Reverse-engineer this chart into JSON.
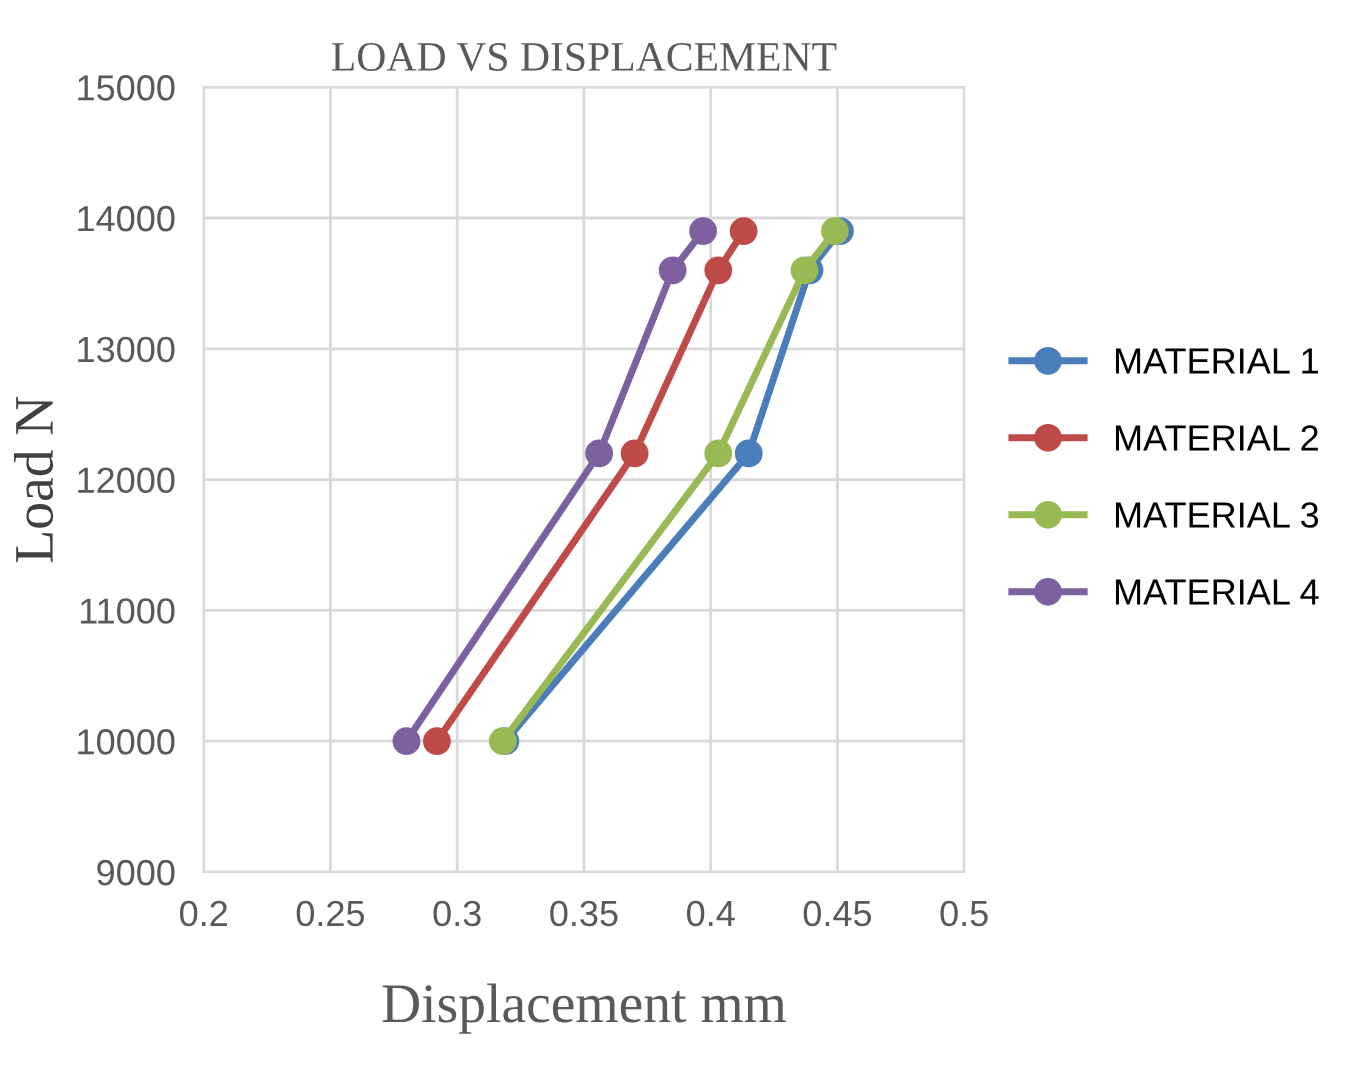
{
  "chart_data": {
    "type": "line",
    "title": "LOAD VS DISPLACEMENT",
    "xlabel": "Displacement mm",
    "ylabel": "Load N",
    "series": [
      {
        "name": "MATERIAL 1",
        "color": "#4a7ebb",
        "x": [
          0.319,
          0.415,
          0.439,
          0.451
        ],
        "values": [
          10000,
          12200,
          13600,
          13900
        ]
      },
      {
        "name": "MATERIAL 2",
        "color": "#be4b48",
        "x": [
          0.292,
          0.37,
          0.403,
          0.413
        ],
        "values": [
          10000,
          12200,
          13600,
          13900
        ]
      },
      {
        "name": "MATERIAL 3",
        "color": "#98b954",
        "x": [
          0.318,
          0.403,
          0.437,
          0.449
        ],
        "values": [
          10000,
          12200,
          13600,
          13900
        ]
      },
      {
        "name": "MATERIAL 4",
        "color": "#7d60a0",
        "x": [
          0.28,
          0.356,
          0.385,
          0.397
        ],
        "values": [
          10000,
          12200,
          13600,
          13900
        ]
      }
    ],
    "xlim": [
      0.2,
      0.5
    ],
    "xticks": [
      0.2,
      0.25,
      0.3,
      0.35,
      0.4,
      0.45,
      0.5
    ],
    "ylim": [
      9000,
      15000
    ],
    "yticks": [
      9000,
      10000,
      11000,
      12000,
      13000,
      14000,
      15000
    ],
    "grid": true,
    "legend": "right",
    "marker": "circle",
    "line_style": "solid"
  }
}
